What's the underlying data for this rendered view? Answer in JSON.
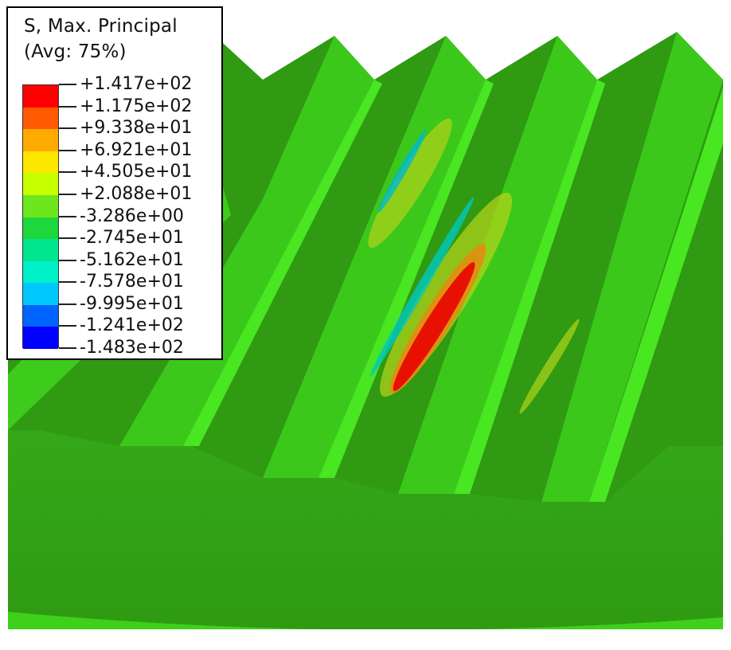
{
  "legend": {
    "title_line1": "S, Max. Principal",
    "title_line2": "(Avg: 75%)",
    "values": [
      "+1.417e+02",
      "+1.175e+02",
      "+9.338e+01",
      "+6.921e+01",
      "+4.505e+01",
      "+2.088e+01",
      "-3.286e+00",
      "-2.745e+01",
      "-5.162e+01",
      "-7.578e+01",
      "-9.995e+01",
      "-1.241e+02",
      "-1.483e+02"
    ],
    "band_colors": [
      "#ff0000",
      "#ff5a00",
      "#ffaa00",
      "#ffe600",
      "#c8ff00",
      "#6ee61e",
      "#1ed73c",
      "#00e68c",
      "#00f0c8",
      "#00c8ff",
      "#0064ff",
      "#0000ff"
    ]
  },
  "model": {
    "base_color": "#2e9a12",
    "flank_color": "#3bc81b",
    "crest_color": "#44e21e"
  }
}
